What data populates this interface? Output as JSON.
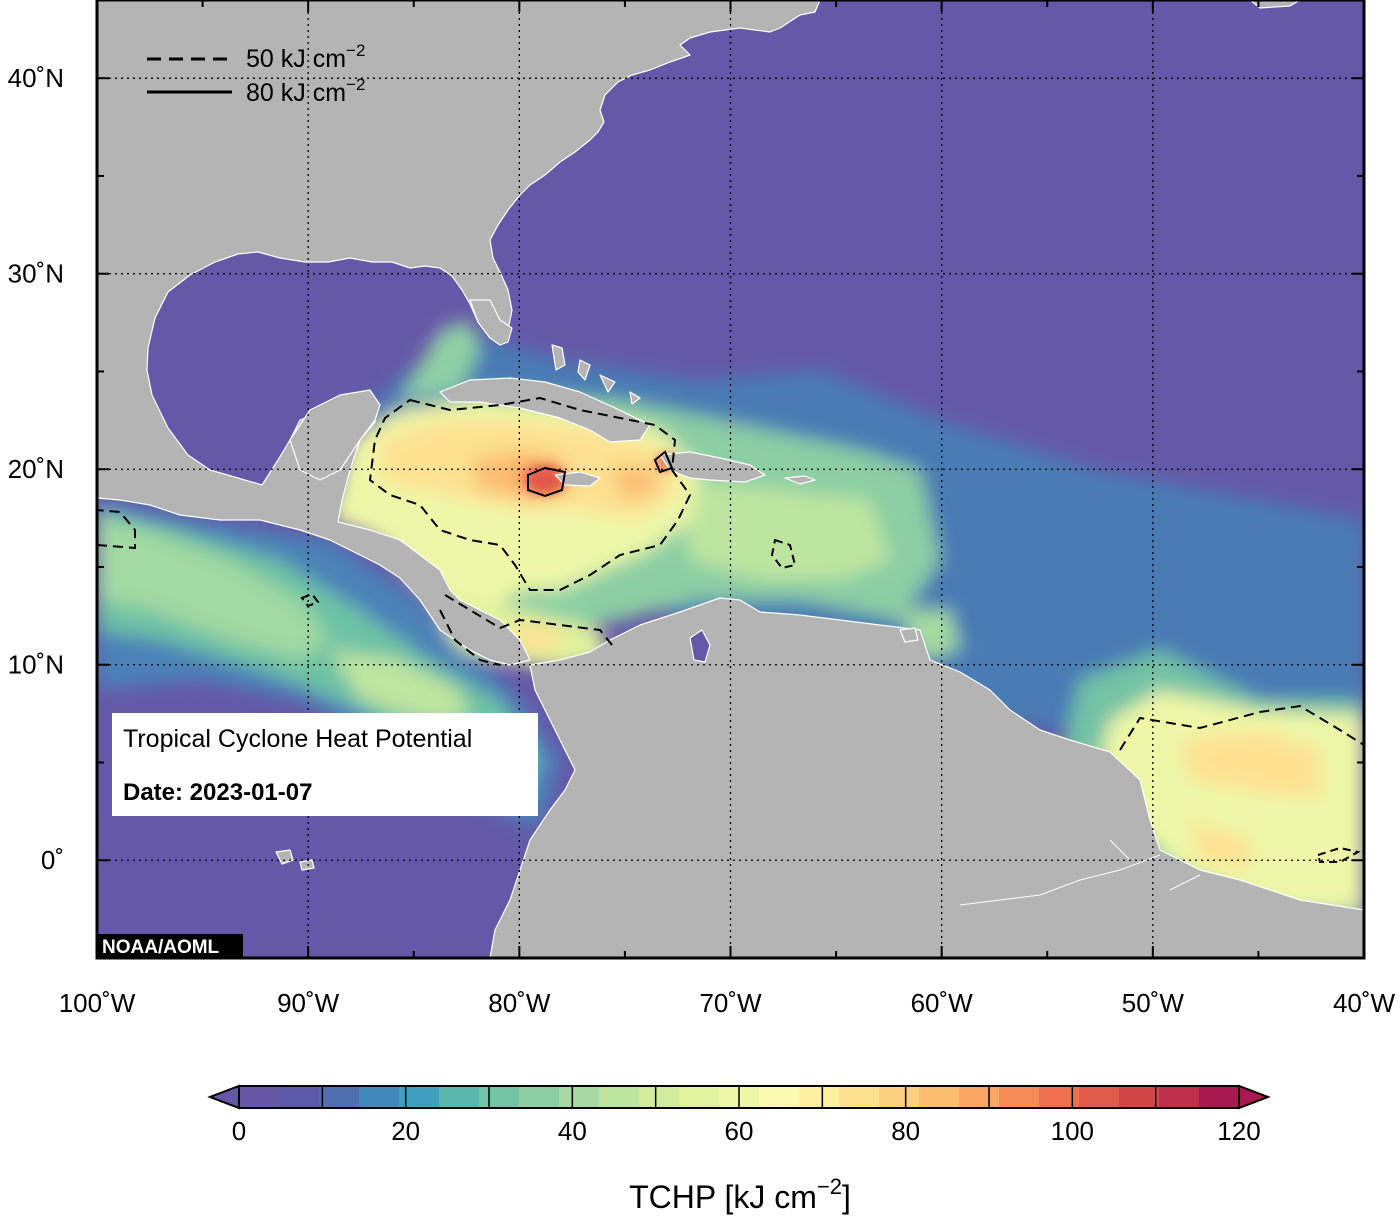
{
  "map": {
    "extent": {
      "lon": [
        -100,
        -40
      ],
      "lat": [
        -5,
        44
      ]
    },
    "lon_ticks": [
      -100,
      -90,
      -80,
      -70,
      -60,
      -50,
      -40
    ],
    "lat_ticks": [
      0,
      10,
      20,
      30,
      40
    ],
    "lon_labels": [
      "100˚W",
      "90˚W",
      "80˚W",
      "70˚W",
      "60˚W",
      "50˚W",
      "40˚W"
    ],
    "lat_labels": [
      "0˚",
      "10˚N",
      "20˚N",
      "30˚N",
      "40˚N"
    ],
    "grid": true,
    "colors": {
      "ocean_low": "#6558a8",
      "land": "#b4b4b4",
      "coast": "#ffffff"
    }
  },
  "legend": {
    "dashed": {
      "value": "50 kJ cm",
      "exp": "−2"
    },
    "solid": {
      "value": "80 kJ cm",
      "exp": "−2"
    }
  },
  "info": {
    "title": "Tropical Cyclone Heat Potential",
    "date": "Date: 2023-01-07"
  },
  "credit": "NOAA/AOML",
  "colorbar": {
    "min": 0,
    "max": 120,
    "step": 5,
    "ticks": [
      "0",
      "20",
      "40",
      "60",
      "80",
      "100",
      "120"
    ],
    "title": "TCHP [kJ cm",
    "title_exp": "−2",
    "title_close": "]",
    "colors": [
      "#6557a6",
      "#5c5aa8",
      "#4f6fb0",
      "#4287bb",
      "#3f9fbe",
      "#5ab5ad",
      "#73c3a5",
      "#8ccfa4",
      "#a6daa2",
      "#bee5a0",
      "#d2ec9d",
      "#e2f29e",
      "#eef7a7",
      "#fbf9b3",
      "#fdf0a2",
      "#fde191",
      "#fdd081",
      "#fcbd72",
      "#faa664",
      "#f68c58",
      "#ee704f",
      "#e25a4a",
      "#d24549",
      "#c0304c",
      "#a8194f"
    ]
  }
}
